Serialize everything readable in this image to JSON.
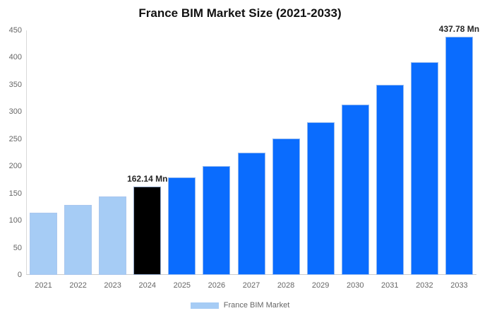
{
  "title": "France BIM Market Size (2021-2033)",
  "legend": {
    "label": "France BIM Market"
  },
  "colors": {
    "light_blue": "#A6CCF5",
    "blue": "#0A6CFE",
    "black": "#000000",
    "axis_line": "#D9D9D9",
    "tick_text": "#666666"
  },
  "chart_data": {
    "type": "bar",
    "title": "France BIM Market Size (2021-2033)",
    "categories": [
      "2021",
      "2022",
      "2023",
      "2024",
      "2025",
      "2026",
      "2027",
      "2028",
      "2029",
      "2030",
      "2031",
      "2032",
      "2033"
    ],
    "series": [
      {
        "name": "France BIM Market",
        "values": [
          115,
          129,
          145,
          162.14,
          180,
          200,
          225,
          251,
          281,
          313,
          350,
          391,
          437.78
        ]
      }
    ],
    "bar_color_keys": [
      "light_blue",
      "light_blue",
      "light_blue",
      "black",
      "blue",
      "blue",
      "blue",
      "blue",
      "blue",
      "blue",
      "blue",
      "blue",
      "blue"
    ],
    "point_labels": [
      {
        "category": "2024",
        "text": "162.14 Mn"
      },
      {
        "category": "2033",
        "text": "437.78 Mn"
      }
    ],
    "xlabel": "",
    "ylabel": "",
    "ylim": [
      0,
      450
    ],
    "yticks": [
      0,
      50,
      100,
      150,
      200,
      250,
      300,
      350,
      400,
      450
    ],
    "grid": false,
    "legend_position": "bottom",
    "legend_items": [
      {
        "label": "France BIM Market",
        "color_key": "light_blue"
      }
    ]
  }
}
